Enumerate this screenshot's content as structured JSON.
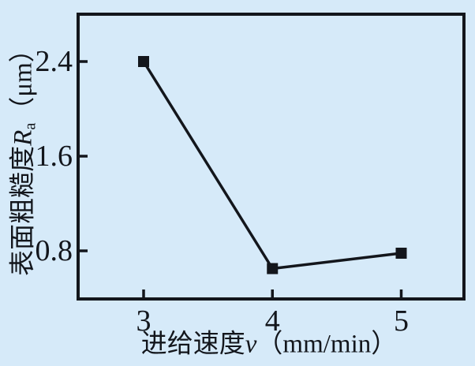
{
  "figure": {
    "background_color": "#d6eaf9",
    "ink_color": "#13161c"
  },
  "chart_data": {
    "type": "line",
    "title": "",
    "x": [
      3,
      4,
      5
    ],
    "values": [
      2.4,
      0.65,
      0.78
    ],
    "marker": "filled-square",
    "line_color": "#13161c",
    "grid": false,
    "legend": null,
    "x_ticks": [
      3,
      4,
      5
    ],
    "x_tick_labels": [
      "3",
      "4",
      "5"
    ],
    "y_ticks": [
      2.4,
      1.6,
      0.8
    ],
    "y_tick_labels": [
      "2.4",
      "1.6",
      "0.8"
    ],
    "xlim": [
      2.5,
      5.5
    ],
    "ylim": [
      0.41,
      2.81
    ],
    "xlabel_cjk": "进给速度",
    "xlabel_var": "v",
    "xlabel_unit": "（mm/min）",
    "ylabel_cjk": "表面粗糙度",
    "ylabel_var": "R",
    "ylabel_sub": "a",
    "ylabel_unit": "（μm）"
  }
}
